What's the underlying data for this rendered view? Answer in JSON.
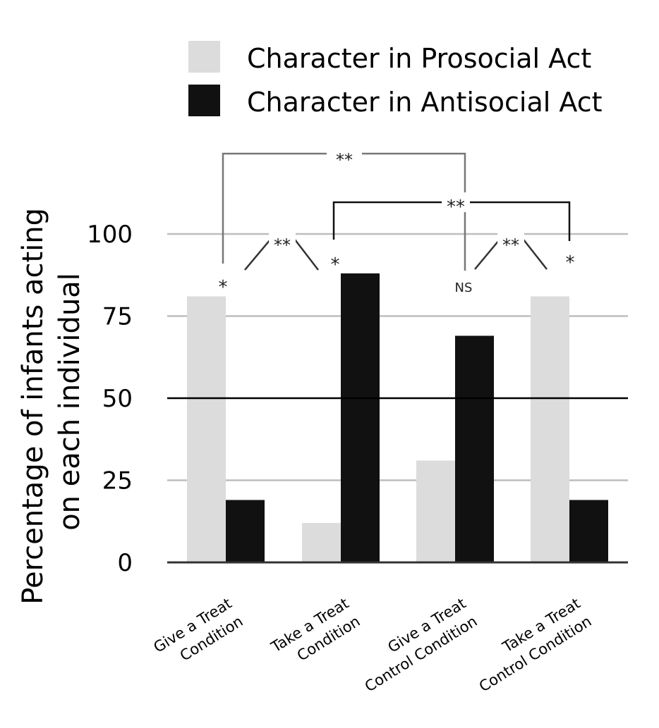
{
  "chart_data": {
    "type": "bar",
    "categories": [
      [
        "Give a Treat",
        "Condition"
      ],
      [
        "Take a Treat",
        "Condition"
      ],
      [
        "Give a Treat",
        "Control Condition"
      ],
      [
        "Take a Treat",
        "Control Condition"
      ]
    ],
    "series": [
      {
        "name": "Character in Prosocial Act",
        "color": "#dcdcdc",
        "values": [
          81,
          12,
          31,
          81
        ]
      },
      {
        "name": "Character in Antisocial Act",
        "color": "#111111",
        "values": [
          19,
          88,
          69,
          19
        ]
      }
    ],
    "ylabel": [
      "Percentage of infants acting",
      "on each individual"
    ],
    "yticks": [
      0,
      25,
      50,
      75,
      100
    ],
    "ylim": [
      0,
      100
    ],
    "grid": true,
    "reference_line": 50,
    "legend_position": "top",
    "annotations": {
      "bar_marks": [
        "*",
        "*",
        "NS",
        "*"
      ],
      "between_condition_marks": [
        "**",
        "**"
      ],
      "bracket_marks": [
        "**",
        "**"
      ]
    }
  }
}
